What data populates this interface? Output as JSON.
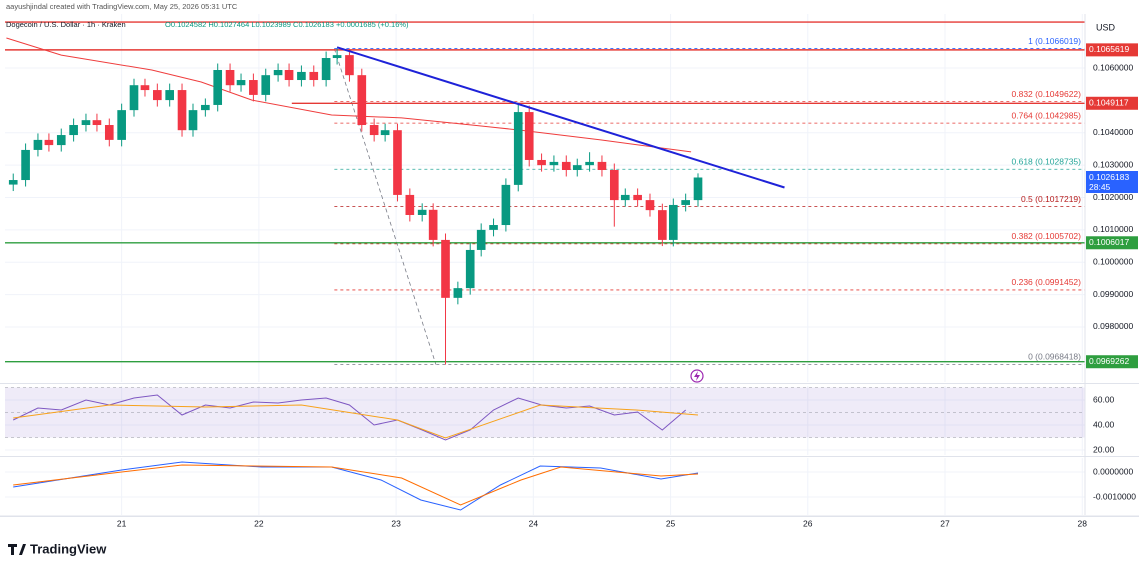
{
  "chart_data": [
    {
      "type": "candlestick",
      "title": "aayushjindal created with TradingView.com, May 25, 2026 05:31 UTC",
      "subtitle": "Dogecoin / U.S. Dollar · 1h · Kraken",
      "ohlc_text": "O0.1024582 H0.1027464 L0.1023989 C0.1026183 +0.0001685 (+0.16%)",
      "currency": "USD",
      "countdown": "28:45",
      "up_color": "#089981",
      "down_color": "#f23645",
      "x": [
        20.21,
        20.3,
        20.39,
        20.47,
        20.56,
        20.65,
        20.74,
        20.82,
        20.91,
        21.0,
        21.09,
        21.17,
        21.26,
        21.35,
        21.44,
        21.52,
        21.61,
        21.7,
        21.79,
        21.87,
        21.96,
        22.05,
        22.14,
        22.22,
        22.31,
        22.4,
        22.49,
        22.57,
        22.66,
        22.75,
        22.84,
        22.92,
        23.01,
        23.1,
        23.19,
        23.27,
        23.36,
        23.45,
        23.54,
        23.62,
        23.71,
        23.8,
        23.89,
        23.97,
        24.06,
        24.15,
        24.24,
        24.32,
        24.41,
        24.5,
        24.59,
        24.67,
        24.76,
        24.85,
        24.94,
        25.02,
        25.11,
        25.2
      ],
      "open": [
        0.1024,
        0.10254,
        0.10347,
        0.10378,
        0.10362,
        0.10393,
        0.10424,
        0.10439,
        0.10424,
        0.10378,
        0.1047,
        0.10547,
        0.10532,
        0.10501,
        0.10532,
        0.10408,
        0.1047,
        0.10486,
        0.10594,
        0.10547,
        0.10563,
        0.10517,
        0.10578,
        0.10594,
        0.10563,
        0.10588,
        0.10563,
        0.10631,
        0.1064,
        0.10578,
        0.10424,
        0.10393,
        0.10408,
        0.10208,
        0.10146,
        0.10162,
        0.10069,
        0.0989,
        0.0992,
        0.10038,
        0.101,
        0.10115,
        0.10239,
        0.10464,
        0.10316,
        0.103,
        0.1031,
        0.10285,
        0.103,
        0.1031,
        0.10285,
        0.10192,
        0.10208,
        0.10192,
        0.10161,
        0.10069,
        0.10177,
        0.10192
      ],
      "high": [
        0.10274,
        0.10367,
        0.10398,
        0.10398,
        0.10413,
        0.10444,
        0.10459,
        0.10459,
        0.10444,
        0.1049,
        0.10567,
        0.10567,
        0.10552,
        0.10552,
        0.10552,
        0.1049,
        0.10506,
        0.10614,
        0.10614,
        0.10583,
        0.10583,
        0.10598,
        0.10614,
        0.10614,
        0.10608,
        0.10608,
        0.10651,
        0.1066019,
        0.1066,
        0.10598,
        0.10444,
        0.10428,
        0.10428,
        0.10228,
        0.10182,
        0.10182,
        0.10089,
        0.0994,
        0.10058,
        0.1012,
        0.10135,
        0.10259,
        0.1049,
        0.10484,
        0.10336,
        0.1033,
        0.1033,
        0.1032,
        0.1034,
        0.1033,
        0.10305,
        0.10228,
        0.10228,
        0.10212,
        0.10181,
        0.10197,
        0.10212,
        0.1027464
      ],
      "low": [
        0.1022,
        0.10234,
        0.10327,
        0.10342,
        0.10342,
        0.10373,
        0.10404,
        0.10404,
        0.10358,
        0.10358,
        0.1045,
        0.10512,
        0.10481,
        0.10481,
        0.10388,
        0.10388,
        0.1045,
        0.10466,
        0.10527,
        0.10527,
        0.10497,
        0.10497,
        0.10558,
        0.10543,
        0.10543,
        0.10543,
        0.10543,
        0.10611,
        0.10558,
        0.10404,
        0.10373,
        0.10373,
        0.10188,
        0.10126,
        0.10126,
        0.10049,
        0.0968418,
        0.0987,
        0.099,
        0.10018,
        0.1008,
        0.10095,
        0.10219,
        0.10296,
        0.1028,
        0.1028,
        0.10265,
        0.10265,
        0.1028,
        0.10265,
        0.1011,
        0.10172,
        0.10172,
        0.10141,
        0.1005,
        0.10049,
        0.10157,
        0.10172
      ],
      "close": [
        0.10254,
        0.10347,
        0.10378,
        0.10362,
        0.10393,
        0.10424,
        0.10439,
        0.10424,
        0.10378,
        0.1047,
        0.10547,
        0.10532,
        0.10501,
        0.10532,
        0.10408,
        0.1047,
        0.10486,
        0.10594,
        0.10547,
        0.10563,
        0.10517,
        0.10578,
        0.10594,
        0.10563,
        0.10588,
        0.10563,
        0.10631,
        0.1064,
        0.10578,
        0.10424,
        0.10393,
        0.10408,
        0.10208,
        0.10146,
        0.10162,
        0.10069,
        0.0989,
        0.0992,
        0.10038,
        0.101,
        0.10115,
        0.10239,
        0.10464,
        0.10316,
        0.103,
        0.1031,
        0.10285,
        0.103,
        0.1031,
        0.10285,
        0.10192,
        0.10208,
        0.10192,
        0.10161,
        0.10069,
        0.10177,
        0.10192,
        0.1026183
      ],
      "xlim": [
        20.15,
        28.02
      ],
      "xticks": [
        21,
        22,
        23,
        24,
        25,
        26,
        27,
        28
      ],
      "ylim": [
        0.0963,
        0.10767
      ],
      "yticks": [
        {
          "value": 0.106,
          "label": "0.1060000"
        },
        {
          "value": 0.104,
          "label": "0.1040000"
        },
        {
          "value": 0.103,
          "label": "0.1030000"
        },
        {
          "value": 0.102,
          "label": "0.1020000"
        },
        {
          "value": 0.101,
          "label": "0.1010000"
        },
        {
          "value": 0.1,
          "label": "0.1000000"
        },
        {
          "value": 0.099,
          "label": "0.0990000"
        },
        {
          "value": 0.098,
          "label": "0.0980000"
        }
      ],
      "levels": [
        {
          "value": 0.10742,
          "color": "#e53935",
          "from": 20.15
        },
        {
          "value": 0.1065619,
          "color": "#e53935",
          "from": 20.15
        },
        {
          "value": 0.1049117,
          "color": "#e53935",
          "from": 22.24
        },
        {
          "value": 0.1006017,
          "color": "#2e9e3f",
          "from": 20.15
        },
        {
          "value": 0.0969262,
          "color": "#2e9e3f",
          "from": 20.15
        }
      ],
      "last_color": "#2962ff",
      "fib": {
        "x": [
          22.55,
          23.29
        ],
        "levels": [
          {
            "value": 0.1066019,
            "label": "1 (0.1066019)",
            "color": "#2962ff"
          },
          {
            "value": 0.1049622,
            "label": "0.832 (0.1049622)",
            "color": "#e53935"
          },
          {
            "value": 0.1042985,
            "label": "0.764 (0.1042985)",
            "color": "#e53935"
          },
          {
            "value": 0.1028735,
            "label": "0.618 (0.1028735)",
            "color": "#26a69a"
          },
          {
            "value": 0.1017219,
            "label": "0.5 (0.1017219)",
            "color": "#b71c1c"
          },
          {
            "value": 0.1005702,
            "label": "0.382 (0.1005702)",
            "color": "#e53935"
          },
          {
            "value": 0.0991452,
            "label": "0.236 (0.0991452)",
            "color": "#e53935"
          },
          {
            "value": 0.0968418,
            "label": "0 (0.0968418)",
            "color": "#787b86"
          }
        ]
      },
      "trendline": {
        "x": [
          22.57,
          25.83
        ],
        "values": [
          0.10664,
          0.10231
        ],
        "color": "#1e22d8"
      },
      "ma": {
        "x": [
          20.16,
          20.56,
          21.22,
          21.58,
          21.95,
          22.53,
          23.04,
          23.55,
          23.91,
          24.49,
          25.15
        ],
        "values": [
          0.10693,
          0.1064,
          0.10594,
          0.10557,
          0.10501,
          0.10455,
          0.10446,
          0.10424,
          0.10408,
          0.10378,
          0.10341
        ],
        "color": "#ef3d3d"
      }
    },
    {
      "type": "line",
      "ylim": [
        16,
        71.2
      ],
      "yticks": [
        {
          "value": 60,
          "label": "60.00"
        },
        {
          "value": 40,
          "label": "40.00"
        },
        {
          "value": 20,
          "label": "20.00"
        }
      ],
      "band": [
        30,
        70
      ],
      "band_color": "#7e57c2",
      "levels": [
        70,
        50,
        30
      ],
      "series": [
        {
          "color": "#7e57c2",
          "x": [
            20.21,
            20.39,
            20.56,
            20.74,
            20.91,
            21.09,
            21.26,
            21.44,
            21.61,
            21.79,
            21.96,
            22.14,
            22.31,
            22.49,
            22.66,
            22.84,
            23.01,
            23.19,
            23.36,
            23.54,
            23.71,
            23.89,
            24.06,
            24.24,
            24.41,
            24.59,
            24.76,
            24.94,
            25.11
          ],
          "values": [
            44,
            53.6,
            52,
            60,
            56,
            61.6,
            64,
            48,
            56,
            53.6,
            58.4,
            57.6,
            60,
            61.6,
            56,
            40,
            44,
            36,
            28,
            36,
            52,
            61.6,
            56,
            53.6,
            55.2,
            48,
            50.4,
            36,
            52
          ]
        },
        {
          "color": "#f7a21b",
          "x": [
            20.21,
            20.91,
            21.61,
            22.31,
            23.01,
            23.36,
            24.05,
            24.75,
            25.2
          ],
          "values": [
            45.6,
            56,
            54.4,
            56,
            44,
            29.6,
            56,
            52,
            48
          ]
        }
      ]
    },
    {
      "type": "line",
      "ylim": [
        -0.00172,
        0.00056
      ],
      "yticks": [
        {
          "value": 0,
          "label": "0.0000000"
        },
        {
          "value": -0.001,
          "label": "-0.0010000"
        }
      ],
      "series": [
        {
          "color": "#2962ff",
          "x": [
            20.21,
            21,
            21.44,
            22.02,
            22.53,
            22.89,
            23.18,
            23.47,
            23.76,
            24.05,
            24.49,
            24.93,
            25.2
          ],
          "values": [
            -0.0006,
            8e-05,
            0.0004,
            0.0002,
            0.0002,
            -0.00032,
            -0.00112,
            -0.00152,
            -0.00052,
            0.00024,
            0.00016,
            -0.00028,
            -4e-05
          ]
        },
        {
          "color": "#ff6d00",
          "x": [
            20.21,
            21,
            21.44,
            22.53,
            23.04,
            23.47,
            23.91,
            24.2,
            24.93,
            25.2
          ],
          "values": [
            -0.00052,
            0,
            0.00028,
            0.0002,
            -0.00024,
            -0.00132,
            -0.00032,
            0.0002,
            -0.00016,
            -8e-05
          ]
        }
      ]
    }
  ],
  "branding": {
    "logo": "TradingView"
  }
}
